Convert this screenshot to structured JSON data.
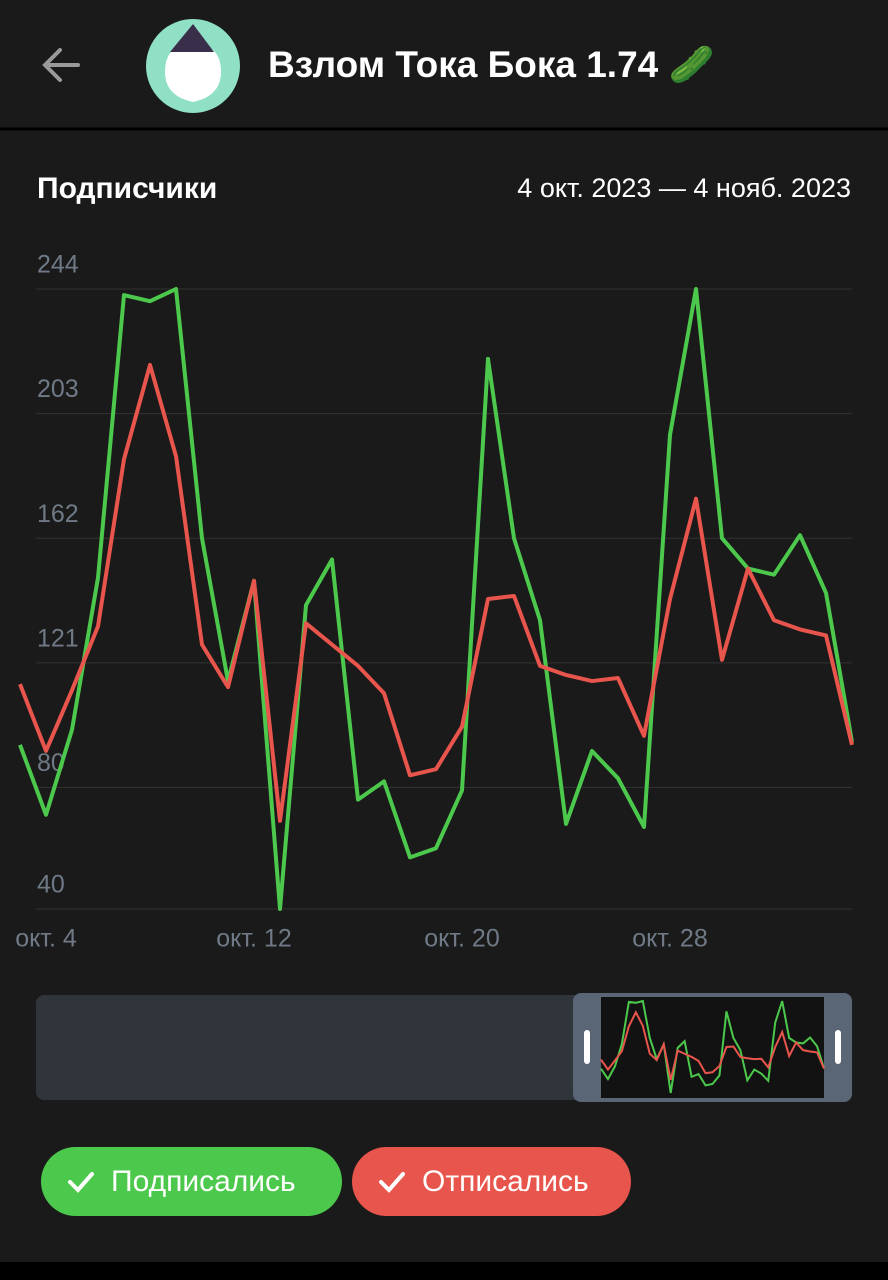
{
  "header": {
    "title": "Взлом Тока Бока 1.74 🥒"
  },
  "chart_data": {
    "type": "line",
    "title": "Подписчики",
    "subtitle": "4 окт. 2023 — 4 нояб. 2023",
    "categories": [
      null,
      "окт. 4",
      null,
      null,
      null,
      null,
      null,
      null,
      null,
      "окт. 12",
      null,
      null,
      null,
      null,
      null,
      null,
      null,
      "окт. 20",
      null,
      null,
      null,
      null,
      null,
      null,
      null,
      "окт. 28",
      null,
      null,
      null,
      null,
      null,
      null,
      null
    ],
    "series": [
      {
        "name": "Подписались",
        "color": "#4cc94c",
        "values": [
          94,
          71,
          99,
          149,
          242,
          240,
          244,
          162,
          115,
          148,
          40,
          140,
          155,
          76,
          82,
          57,
          60,
          79,
          221,
          162,
          135,
          68,
          92,
          83,
          67,
          196,
          244,
          162,
          152,
          150,
          163,
          144,
          95
        ]
      },
      {
        "name": "Отписались",
        "color": "#e8554c",
        "values": [
          114,
          92,
          112,
          133,
          188,
          219,
          189,
          127,
          113,
          148,
          69,
          134,
          127,
          120,
          111,
          84,
          86,
          100,
          142,
          143,
          120,
          117,
          115,
          116,
          97,
          142,
          175,
          122,
          152,
          135,
          132,
          130,
          94
        ]
      }
    ],
    "ylim": [
      40,
      244
    ],
    "yticks": [
      40,
      80,
      121,
      162,
      203,
      244
    ],
    "grid": true,
    "legend": "bottom-left"
  }
}
